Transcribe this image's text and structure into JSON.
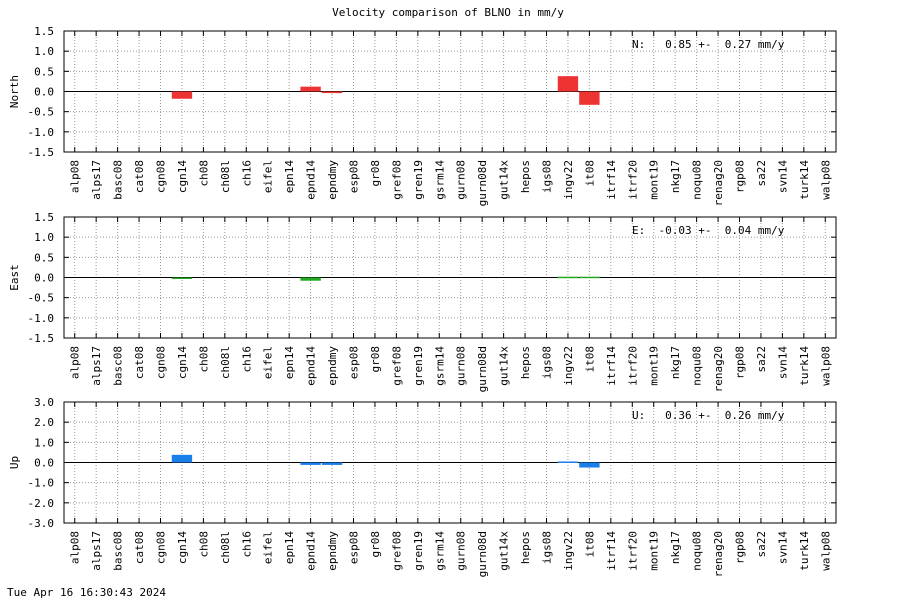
{
  "title": "Velocity comparison of BLNO in mm/y",
  "footer": "Tue Apr 16 16:30:43 2024",
  "chart_data": [
    {
      "type": "bar",
      "ylabel": "North",
      "ylim": [
        -1.5,
        1.5
      ],
      "yticks": [
        "1.5",
        "1.0",
        "0.5",
        "0.0",
        "-0.5",
        "-1.0",
        "-1.5"
      ],
      "grid": true,
      "color": "#ee3333",
      "stat_text": "N:   0.85 +-  0.27 mm/y",
      "categories": [
        "alp08",
        "alps17",
        "basc08",
        "cat08",
        "cgn08",
        "cgn14",
        "ch08",
        "ch08l",
        "ch16",
        "eifel",
        "epn14",
        "epnd14",
        "epndmy",
        "esp08",
        "gr08",
        "gref08",
        "gren19",
        "gsrm14",
        "gurn08",
        "gurn08d",
        "gut14x",
        "hepos",
        "igs08",
        "ingv22",
        "it08",
        "itrf14",
        "itrf20",
        "mont19",
        "nkg17",
        "noqu08",
        "renag20",
        "rgp08",
        "sa22",
        "svn14",
        "turk14",
        "walp08"
      ],
      "values": [
        null,
        null,
        null,
        null,
        null,
        -0.18,
        null,
        null,
        null,
        null,
        null,
        0.12,
        -0.04,
        null,
        null,
        null,
        null,
        null,
        null,
        null,
        null,
        null,
        null,
        0.38,
        -0.33,
        null,
        null,
        null,
        null,
        null,
        null,
        null,
        null,
        null,
        null,
        null
      ]
    },
    {
      "type": "bar",
      "ylabel": "East",
      "ylim": [
        -1.5,
        1.5
      ],
      "yticks": [
        "1.5",
        "1.0",
        "0.5",
        "0.0",
        "-0.5",
        "-1.0",
        "-1.5"
      ],
      "grid": true,
      "color": "#22aa22",
      "stat_text": "E:  -0.03 +-  0.04 mm/y",
      "categories": [
        "alp08",
        "alps17",
        "basc08",
        "cat08",
        "cgn08",
        "cgn14",
        "ch08",
        "ch08l",
        "ch16",
        "eifel",
        "epn14",
        "epnd14",
        "epndmy",
        "esp08",
        "gr08",
        "gref08",
        "gren19",
        "gsrm14",
        "gurn08",
        "gurn08d",
        "gut14x",
        "hepos",
        "igs08",
        "ingv22",
        "it08",
        "itrf14",
        "itrf20",
        "mont19",
        "nkg17",
        "noqu08",
        "renag20",
        "rgp08",
        "sa22",
        "svn14",
        "turk14",
        "walp08"
      ],
      "values": [
        null,
        null,
        null,
        null,
        null,
        -0.03,
        null,
        null,
        null,
        null,
        null,
        -0.08,
        null,
        null,
        null,
        null,
        null,
        null,
        null,
        null,
        null,
        null,
        null,
        0.02,
        0.02,
        null,
        null,
        null,
        null,
        null,
        null,
        null,
        null,
        null,
        null,
        null
      ]
    },
    {
      "type": "bar",
      "ylabel": "Up",
      "ylim": [
        -3.0,
        3.0
      ],
      "yticks": [
        "3.0",
        "2.0",
        "1.0",
        "0.0",
        "-1.0",
        "-2.0",
        "-3.0"
      ],
      "grid": true,
      "color": "#1a7fe8",
      "stat_text": "U:   0.36 +-  0.26 mm/y",
      "categories": [
        "alp08",
        "alps17",
        "basc08",
        "cat08",
        "cgn08",
        "cgn14",
        "ch08",
        "ch08l",
        "ch16",
        "eifel",
        "epn14",
        "epnd14",
        "epndmy",
        "esp08",
        "gr08",
        "gref08",
        "gren19",
        "gsrm14",
        "gurn08",
        "gurn08d",
        "gut14x",
        "hepos",
        "igs08",
        "ingv22",
        "it08",
        "itrf14",
        "itrf20",
        "mont19",
        "nkg17",
        "noqu08",
        "renag20",
        "rgp08",
        "sa22",
        "svn14",
        "turk14",
        "walp08"
      ],
      "values": [
        null,
        null,
        null,
        null,
        null,
        0.38,
        null,
        null,
        null,
        null,
        null,
        -0.12,
        -0.12,
        null,
        null,
        null,
        null,
        null,
        null,
        null,
        null,
        null,
        null,
        0.05,
        -0.25,
        null,
        null,
        null,
        null,
        null,
        null,
        null,
        null,
        null,
        null,
        null
      ]
    }
  ]
}
